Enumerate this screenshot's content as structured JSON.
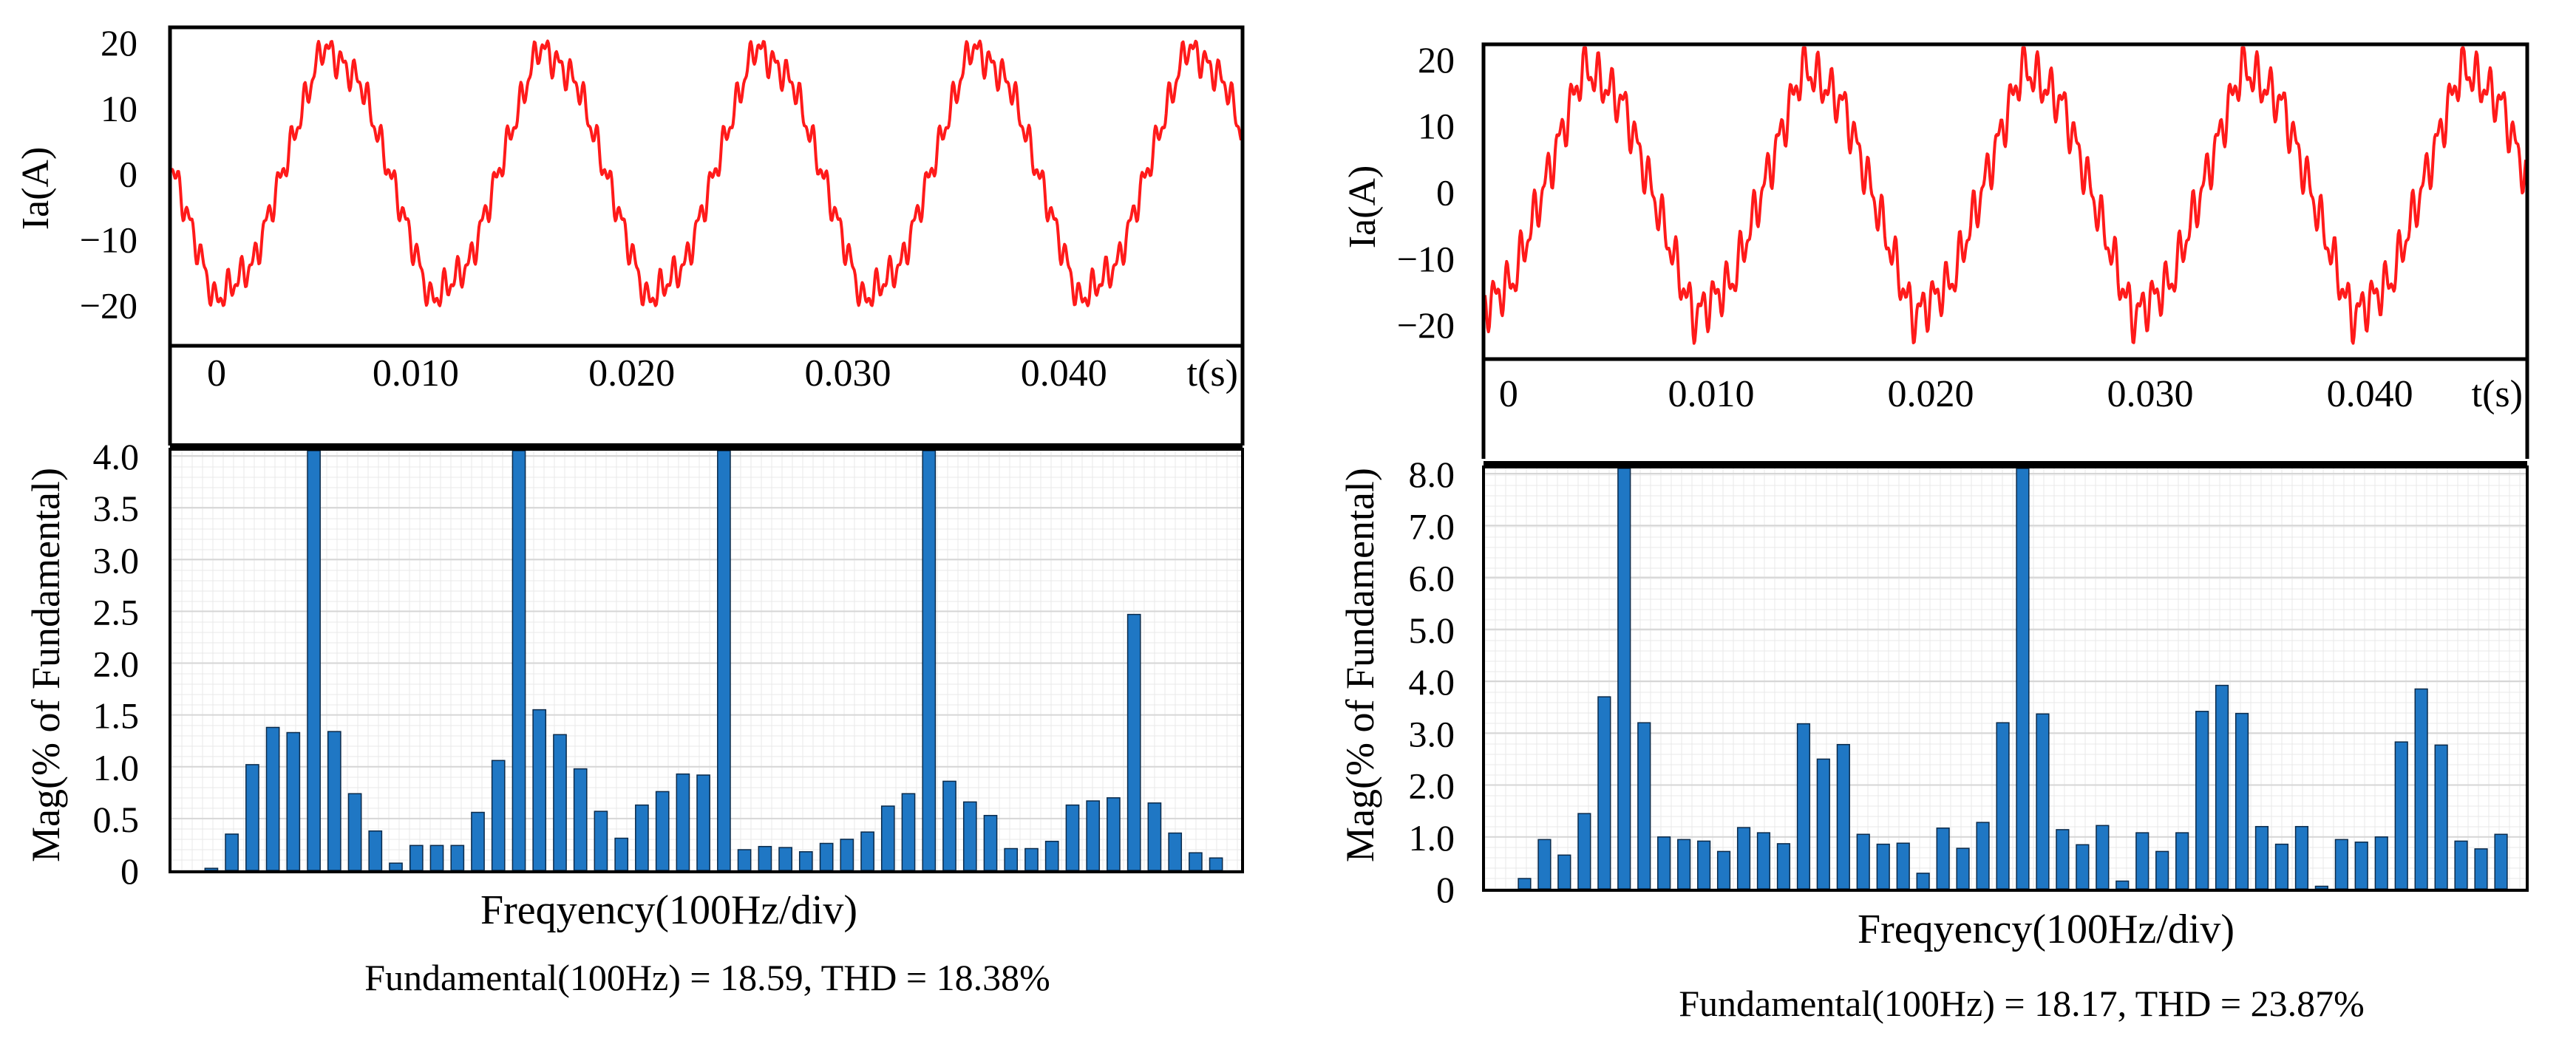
{
  "chart_data": [
    {
      "type": "line",
      "panel": "left",
      "title": "",
      "ylabel": "Ia(A)",
      "xlabel": "t(s)",
      "ylim": [
        -26,
        22
      ],
      "xlim": [
        -0.0013,
        0.0482
      ],
      "yticks": [
        "20",
        "10",
        "0",
        "−10",
        "−20"
      ],
      "ytick_values": [
        20,
        10,
        0,
        -10,
        -20
      ],
      "xticks": [
        "0",
        "0.010",
        "0.020",
        "0.030",
        "0.040"
      ],
      "xtick_values": [
        0,
        0.01,
        0.02,
        0.03,
        0.04
      ],
      "series": [
        {
          "name": "Ia",
          "color": "#ff1a1a",
          "period": 0.01,
          "amplitude": 19.5,
          "phase": 0.0007,
          "ripple": 3.0
        }
      ]
    },
    {
      "type": "bar",
      "panel": "left",
      "title": "",
      "ylabel": "Mag(% of Fundamental)",
      "xlabel": "Freqyency(100Hz/div)",
      "ylim": [
        0,
        4.05
      ],
      "yticks": [
        "4.0",
        "3.5",
        "3.0",
        "2.5",
        "2.0",
        "1.5",
        "1.0",
        "0.5",
        "0"
      ],
      "ytick_values": [
        4.0,
        3.5,
        3.0,
        2.5,
        2.0,
        1.5,
        1.0,
        0.5,
        0
      ],
      "bar_color": "#1f77c4",
      "values": [
        0.02,
        0.35,
        1.02,
        1.38,
        1.33,
        4.05,
        1.34,
        0.74,
        0.38,
        0.07,
        0.24,
        0.24,
        0.24,
        0.56,
        1.06,
        4.05,
        1.55,
        1.31,
        0.98,
        0.57,
        0.31,
        0.63,
        0.76,
        0.93,
        0.92,
        4.05,
        0.2,
        0.23,
        0.22,
        0.18,
        0.26,
        0.3,
        0.37,
        0.62,
        0.74,
        4.05,
        0.86,
        0.66,
        0.53,
        0.21,
        0.21,
        0.28,
        0.63,
        0.67,
        0.7,
        2.47,
        0.65,
        0.36,
        0.17,
        0.12
      ],
      "caption": "Fundamental(100Hz) = 18.59, THD = 18.38%"
    },
    {
      "type": "line",
      "panel": "right",
      "title": "",
      "ylabel": "Ia(A)",
      "xlabel": "t(s)",
      "ylim": [
        -25,
        22
      ],
      "xlim": [
        -0.0003,
        0.0471
      ],
      "yticks": [
        "20",
        "10",
        "0",
        "−10",
        "−20"
      ],
      "ytick_values": [
        20,
        10,
        0,
        -10,
        -20
      ],
      "xticks": [
        "0",
        "0.010",
        "0.020",
        "0.030",
        "0.040"
      ],
      "xtick_values": [
        0,
        0.01,
        0.02,
        0.03,
        0.04
      ],
      "series": [
        {
          "name": "Ia",
          "color": "#ff1a1a",
          "period": 0.01,
          "amplitude": 19.0,
          "phase": -0.0008,
          "ripple": 4.2
        }
      ]
    },
    {
      "type": "bar",
      "panel": "right",
      "title": "",
      "ylabel": "Mag(% of Fundamental)",
      "xlabel": "Freqyency(100Hz/div)",
      "ylim": [
        0,
        8.1
      ],
      "yticks": [
        "8.0",
        "7.0",
        "6.0",
        "5.0",
        "4.0",
        "3.0",
        "2.0",
        "1.0",
        "0"
      ],
      "ytick_values": [
        8.0,
        7.0,
        6.0,
        5.0,
        4.0,
        3.0,
        2.0,
        1.0,
        0
      ],
      "bar_color": "#1f77c4",
      "values": [
        0.2,
        0.95,
        0.65,
        1.45,
        3.7,
        8.1,
        3.2,
        1.0,
        0.95,
        0.92,
        0.72,
        1.18,
        1.08,
        0.87,
        3.18,
        2.5,
        2.78,
        1.05,
        0.86,
        0.88,
        0.3,
        1.17,
        0.78,
        1.28,
        3.2,
        8.1,
        3.37,
        1.14,
        0.85,
        1.22,
        0.15,
        1.08,
        0.72,
        1.08,
        3.42,
        3.92,
        3.38,
        1.2,
        0.86,
        1.2,
        0.05,
        0.95,
        0.9,
        1.0,
        2.83,
        3.85,
        2.77,
        0.92,
        0.77,
        1.05
      ],
      "caption": "Fundamental(100Hz) = 18.17, THD = 23.87%"
    }
  ]
}
